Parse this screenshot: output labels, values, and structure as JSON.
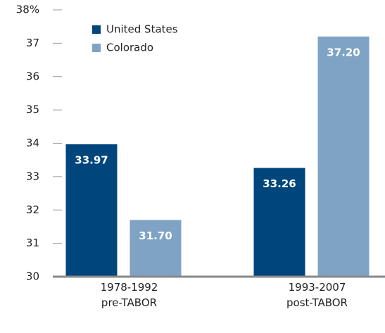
{
  "chart_data": {
    "type": "bar",
    "categories": [
      "1978-1992\npre-TABOR",
      "1993-2007\npost-TABOR"
    ],
    "series": [
      {
        "name": "United States",
        "color": "#00457c",
        "values": [
          33.97,
          33.26
        ],
        "value_labels": [
          "33.97",
          "33.26"
        ]
      },
      {
        "name": "Colorado",
        "color": "#7fa3c4",
        "values": [
          31.7,
          37.2
        ],
        "value_labels": [
          "31.70",
          "37.20"
        ]
      }
    ],
    "ylim": [
      30,
      38
    ],
    "yticks": [
      30,
      31,
      32,
      33,
      34,
      35,
      36,
      37,
      {
        "value": 38,
        "label": "38%"
      }
    ],
    "legend": "upper left"
  }
}
